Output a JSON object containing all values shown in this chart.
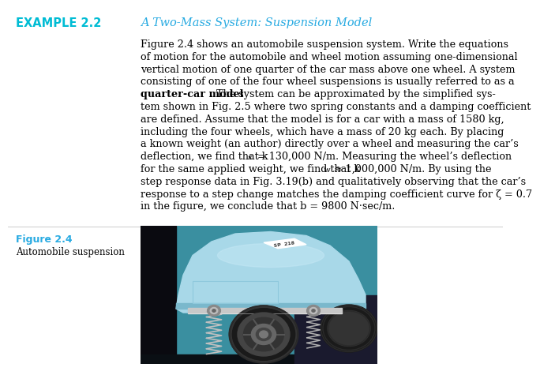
{
  "example_label": "EXAMPLE 2.2",
  "title_italic": "A Two-Mass System: Suspension Model",
  "body_lines": [
    "Figure 2.4 shows an automobile suspension system. Write the equations",
    "of motion for the automobile and wheel motion assuming one-dimensional",
    "vertical motion of one quarter of the car mass above one wheel. A system",
    "consisting of one of the four wheel suspensions is usually referred to as a",
    "quarter-car model. The system can be approximated by the simplified sys-",
    "tem shown in Fig. 2.5 where two spring constants and a damping coefficient",
    "are defined. Assume that the model is for a car with a mass of 1580 kg,",
    "including the four wheels, which have a mass of 20 kg each. By placing",
    "a known weight (an author) directly over a wheel and measuring the car’s",
    "deflection, we find that k_s = 130,000 N/m. Measuring the wheel’s deflection",
    "for the same applied weight, we find that k_w ≈ 1,000,000 N/m. By using the",
    "step response data in Fig. 3.19(b) and qualitatively observing that the car’s",
    "response to a step change matches the damping coefficient curve for ζ = 0.7",
    "in the figure, we conclude that b = 9800 N·sec/m."
  ],
  "bold_line_idx": 4,
  "bold_text": "quarter-car model",
  "bold_rest": ". The system can be approximated by the simplified sys-",
  "figure_label": "Figure 2.4",
  "figure_caption": "Automobile suspension",
  "example_color": "#00bcd4",
  "figure_label_color": "#29abe2",
  "title_color": "#29abe2",
  "bg_color": "#ffffff",
  "body_fontsize": 9.2,
  "example_fontsize": 10.5,
  "title_fontsize": 10.5,
  "fig_label_fontsize": 9.0,
  "fig_caption_fontsize": 8.5,
  "line_color": "#cccccc",
  "car_body_color": "#a8d8e8",
  "car_body_dark": "#7ab8cc",
  "car_bg_teal": "#3a8fa0",
  "car_bg_dark": "#1a2a3a",
  "car_bg_black": "#0a0a10",
  "spring_color": "#aaaaaa",
  "wheel_dark": "#222222",
  "wheel_mid": "#555555",
  "wheel_light": "#888888",
  "arm_color": "#b8b8b8",
  "license_color": "#ffffff"
}
